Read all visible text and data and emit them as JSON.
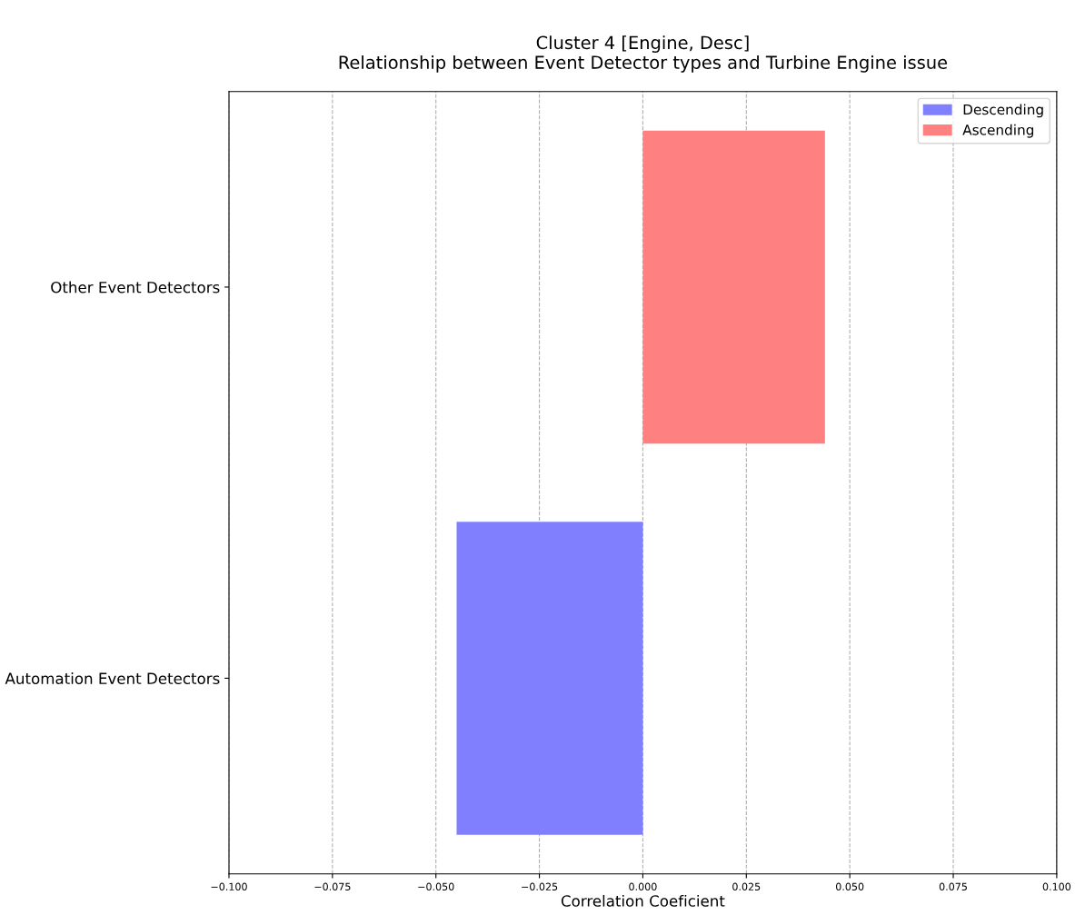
{
  "chart_data": {
    "type": "bar",
    "orientation": "horizontal",
    "title": "Cluster 4 [Engine, Desc]\nRelationship between Event Detector types and Turbine Engine issue",
    "xlabel": "Correlation Coeficient",
    "categories": [
      "Other Event Detectors",
      "Automation Event Detectors"
    ],
    "series": [
      {
        "name": "Descending",
        "color": "#8080ff",
        "values": [
          null,
          -0.045
        ]
      },
      {
        "name": "Ascending",
        "color": "#ff8080",
        "values": [
          0.044,
          null
        ]
      }
    ],
    "xlim": [
      -0.1,
      0.1
    ],
    "xticks": [
      {
        "value": -0.1,
        "label": "−0.100"
      },
      {
        "value": -0.075,
        "label": "−0.075"
      },
      {
        "value": -0.05,
        "label": "−0.050"
      },
      {
        "value": -0.025,
        "label": "−0.025"
      },
      {
        "value": 0,
        "label": "0.000"
      },
      {
        "value": 0.025,
        "label": "0.025"
      },
      {
        "value": 0.05,
        "label": "0.050"
      },
      {
        "value": 0.075,
        "label": "0.075"
      },
      {
        "value": 0.1,
        "label": "0.100"
      }
    ],
    "grid": "x",
    "legend": "top right"
  }
}
